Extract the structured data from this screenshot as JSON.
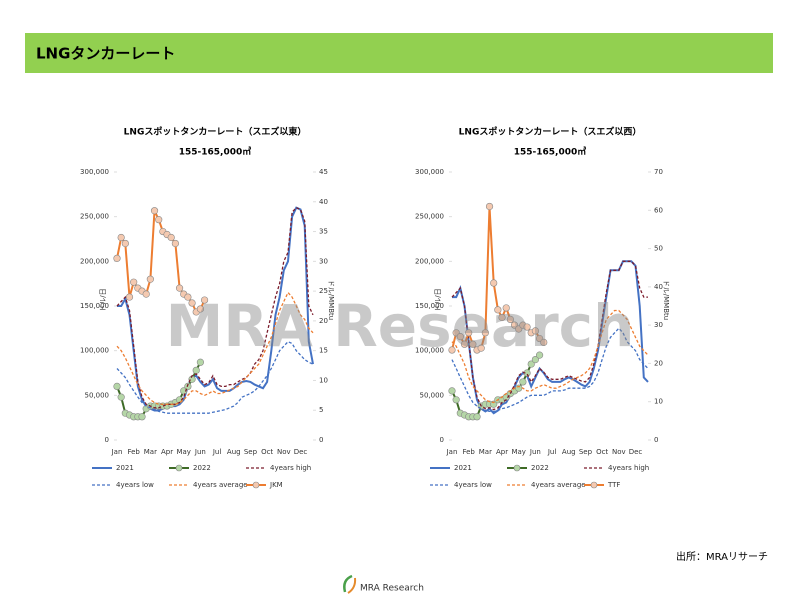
{
  "header": {
    "title": "LNGタンカーレート"
  },
  "source": "出所：MRAリサーチ",
  "watermark": "MRA Research",
  "logo": "MRA Research",
  "chart_data": [
    {
      "type": "line",
      "title": "LNGスポットタンカーレート（スエズ以東）",
      "subtitle": "155-165,000㎥",
      "y_label": "ドル/日",
      "y2_label": "ドル/MMBtu",
      "categories": [
        "Jan",
        null,
        null,
        null,
        "Feb",
        null,
        null,
        null,
        "Mar",
        null,
        null,
        null,
        "Apr",
        null,
        null,
        null,
        "May",
        null,
        null,
        null,
        "Jun",
        null,
        null,
        null,
        "Jul",
        null,
        null,
        null,
        "Aug",
        null,
        null,
        null,
        "Sep",
        null,
        null,
        null,
        "Oct",
        null,
        null,
        null,
        "Nov",
        null,
        null,
        null,
        "Dec",
        null,
        null,
        null
      ],
      "ylim": [
        0,
        300000
      ],
      "yticks": [
        0,
        {
          "value": 50000,
          "label": "50,000"
        },
        {
          "value": 100000,
          "label": "100,000"
        },
        {
          "value": 150000,
          "label": "150,000"
        },
        {
          "value": 200000,
          "label": "200,000"
        },
        {
          "value": 250000,
          "label": "250,000"
        },
        {
          "value": 300000,
          "label": "300,000"
        }
      ],
      "y2lim": [
        0,
        45
      ],
      "y2ticks": [
        0,
        5,
        10,
        15,
        20,
        25,
        30,
        35,
        40,
        45
      ],
      "series": [
        {
          "name": "2021",
          "color": "#4472c4",
          "width": 2,
          "dash": false,
          "marker": false,
          "values": [
            150000,
            150000,
            158000,
            140000,
            100000,
            60000,
            45000,
            38000,
            35000,
            33000,
            33000,
            35000,
            38000,
            38000,
            38000,
            40000,
            45000,
            60000,
            70000,
            72000,
            65000,
            60000,
            62000,
            68000,
            58000,
            55000,
            55000,
            55000,
            58000,
            62000,
            65000,
            66000,
            65000,
            62000,
            60000,
            58000,
            65000,
            100000,
            140000,
            160000,
            190000,
            200000,
            250000,
            260000,
            258000,
            240000,
            110000,
            85000
          ]
        },
        {
          "name": "2022",
          "color": "#3e6b26",
          "width": 2,
          "dash": false,
          "marker": true,
          "marker_fill": "#b5d6a7",
          "values": [
            60000,
            48000,
            30000,
            28000,
            26000,
            26000,
            26000,
            35000,
            38000,
            38000,
            38000,
            38000,
            38000,
            40000,
            42000,
            45000,
            55000,
            60000,
            68000,
            78000,
            87000,
            null,
            null,
            null,
            null,
            null,
            null,
            null,
            null,
            null,
            null,
            null,
            null,
            null,
            null,
            null,
            null,
            null,
            null,
            null,
            null,
            null,
            null,
            null,
            null,
            null,
            null,
            null
          ]
        },
        {
          "name": "4years high",
          "color": "#7b1c2c",
          "width": 1.3,
          "dash": true,
          "marker": false,
          "values": [
            150000,
            155000,
            160000,
            145000,
            105000,
            65000,
            48000,
            40000,
            38000,
            36000,
            36000,
            38000,
            40000,
            40000,
            40000,
            42000,
            48000,
            62000,
            72000,
            74000,
            68000,
            62000,
            64000,
            72000,
            62000,
            60000,
            60000,
            62000,
            62000,
            65000,
            68000,
            70000,
            75000,
            85000,
            90000,
            100000,
            120000,
            140000,
            160000,
            175000,
            200000,
            210000,
            255000,
            260000,
            258000,
            245000,
            150000,
            140000
          ]
        },
        {
          "name": "4years low",
          "color": "#4472c4",
          "width": 1.3,
          "dash": true,
          "marker": false,
          "values": [
            80000,
            75000,
            70000,
            62000,
            55000,
            48000,
            42000,
            38000,
            36000,
            34000,
            32000,
            31000,
            30000,
            30000,
            30000,
            30000,
            30000,
            30000,
            30000,
            30000,
            30000,
            30000,
            30000,
            31000,
            32000,
            33000,
            34000,
            36000,
            38000,
            42000,
            48000,
            50000,
            52000,
            55000,
            60000,
            66000,
            72000,
            80000,
            90000,
            100000,
            105000,
            110000,
            108000,
            100000,
            95000,
            90000,
            87000,
            85000
          ]
        },
        {
          "name": "4years average",
          "color": "#ed7d31",
          "width": 1.3,
          "dash": true,
          "marker": false,
          "values": [
            105000,
            100000,
            92000,
            82000,
            72000,
            62000,
            55000,
            50000,
            45000,
            42000,
            40000,
            40000,
            40000,
            40000,
            40000,
            42000,
            45000,
            50000,
            55000,
            55000,
            52000,
            50000,
            52000,
            55000,
            52000,
            52000,
            54000,
            56000,
            58000,
            60000,
            65000,
            70000,
            75000,
            80000,
            85000,
            95000,
            105000,
            115000,
            130000,
            145000,
            155000,
            165000,
            160000,
            150000,
            140000,
            135000,
            125000,
            120000
          ]
        },
        {
          "name": "JKM",
          "color": "#ed7d31",
          "width": 2,
          "dash": false,
          "marker": true,
          "marker_fill": "#f4c9b0",
          "axis": "y2",
          "values": [
            30.5,
            34,
            33,
            24,
            26.5,
            25.5,
            25,
            24.5,
            27,
            38.5,
            37,
            35,
            34.5,
            34,
            33,
            25.5,
            24.5,
            24,
            23,
            21.5,
            22,
            23.5,
            null,
            null,
            null,
            null,
            null,
            null,
            null,
            null,
            null,
            null,
            null,
            null,
            null,
            null,
            null,
            null,
            null,
            null,
            null,
            null,
            null,
            null,
            null,
            null,
            null,
            null
          ]
        }
      ]
    },
    {
      "type": "line",
      "title": "LNGスポットタンカーレート（スエズ以西）",
      "subtitle": "155-165,000㎥",
      "y_label": "ドル/日",
      "y2_label": "ドル/MMBtu",
      "categories": [
        "Jan",
        null,
        null,
        null,
        "Feb",
        null,
        null,
        null,
        "Mar",
        null,
        null,
        null,
        "Apr",
        null,
        null,
        null,
        "May",
        null,
        null,
        null,
        "Jun",
        null,
        null,
        null,
        "Jul",
        null,
        null,
        null,
        "Aug",
        null,
        null,
        null,
        "Sep",
        null,
        null,
        null,
        "Oct",
        null,
        null,
        null,
        "Nov",
        null,
        null,
        null,
        "Dec",
        null,
        null,
        null
      ],
      "ylim": [
        0,
        300000
      ],
      "yticks": [
        0,
        {
          "value": 50000,
          "label": "50,000"
        },
        {
          "value": 100000,
          "label": "100,000"
        },
        {
          "value": 150000,
          "label": "150,000"
        },
        {
          "value": 200000,
          "label": "200,000"
        },
        {
          "value": 250000,
          "label": "250,000"
        },
        {
          "value": 300000,
          "label": "300,000"
        }
      ],
      "y2lim": [
        0,
        70
      ],
      "y2ticks": [
        0,
        10,
        20,
        30,
        40,
        50,
        60,
        70
      ],
      "series": [
        {
          "name": "2021",
          "color": "#4472c4",
          "width": 2,
          "dash": false,
          "marker": false,
          "values": [
            160000,
            160000,
            170000,
            150000,
            110000,
            70000,
            45000,
            35000,
            32000,
            35000,
            30000,
            33000,
            40000,
            42000,
            50000,
            60000,
            70000,
            75000,
            72000,
            60000,
            70000,
            80000,
            75000,
            68000,
            65000,
            65000,
            65000,
            68000,
            70000,
            68000,
            65000,
            62000,
            60000,
            65000,
            80000,
            100000,
            130000,
            160000,
            190000,
            190000,
            190000,
            200000,
            200000,
            200000,
            195000,
            150000,
            70000,
            65000
          ]
        },
        {
          "name": "2022",
          "color": "#3e6b26",
          "width": 2,
          "dash": false,
          "marker": true,
          "marker_fill": "#b5d6a7",
          "values": [
            55000,
            45000,
            30000,
            28000,
            26000,
            26000,
            26000,
            38000,
            40000,
            40000,
            40000,
            45000,
            45000,
            48000,
            52000,
            55000,
            58000,
            65000,
            75000,
            85000,
            90000,
            95000,
            null,
            null,
            null,
            null,
            null,
            null,
            null,
            null,
            null,
            null,
            null,
            null,
            null,
            null,
            null,
            null,
            null,
            null,
            null,
            null,
            null,
            null,
            null,
            null,
            null,
            null
          ]
        },
        {
          "name": "4years high",
          "color": "#7b1c2c",
          "width": 1.3,
          "dash": true,
          "marker": false,
          "values": [
            160000,
            165000,
            170000,
            150000,
            110000,
            70000,
            48000,
            38000,
            35000,
            36000,
            34000,
            36000,
            42000,
            45000,
            52000,
            62000,
            72000,
            76000,
            74000,
            65000,
            72000,
            80000,
            76000,
            70000,
            68000,
            68000,
            68000,
            70000,
            72000,
            70000,
            68000,
            66000,
            65000,
            70000,
            85000,
            105000,
            135000,
            165000,
            190000,
            190000,
            190000,
            200000,
            200000,
            200000,
            195000,
            170000,
            160000,
            160000
          ]
        },
        {
          "name": "4years low",
          "color": "#4472c4",
          "width": 1.3,
          "dash": true,
          "marker": false,
          "values": [
            90000,
            80000,
            70000,
            60000,
            50000,
            42000,
            38000,
            35000,
            33000,
            32000,
            32000,
            33000,
            35000,
            36000,
            38000,
            40000,
            42000,
            45000,
            48000,
            50000,
            50000,
            50000,
            50000,
            52000,
            55000,
            55000,
            55000,
            56000,
            58000,
            58000,
            58000,
            58000,
            58000,
            60000,
            65000,
            75000,
            90000,
            105000,
            115000,
            120000,
            125000,
            120000,
            110000,
            105000,
            100000,
            90000,
            85000,
            80000
          ]
        },
        {
          "name": "4years average",
          "color": "#ed7d31",
          "width": 1.3,
          "dash": true,
          "marker": false,
          "values": [
            110000,
            105000,
            95000,
            85000,
            70000,
            60000,
            55000,
            50000,
            45000,
            43000,
            42000,
            45000,
            48000,
            52000,
            55000,
            58000,
            60000,
            58000,
            55000,
            55000,
            58000,
            60000,
            62000,
            60000,
            58000,
            58000,
            60000,
            62000,
            65000,
            68000,
            70000,
            72000,
            75000,
            80000,
            90000,
            105000,
            120000,
            135000,
            140000,
            145000,
            145000,
            140000,
            135000,
            125000,
            115000,
            105000,
            100000,
            95000
          ]
        },
        {
          "name": "TTF",
          "color": "#ed7d31",
          "width": 2,
          "dash": false,
          "marker": true,
          "marker_fill": "#f4c9b0",
          "axis": "y2",
          "values": [
            23.5,
            28,
            27,
            25,
            28,
            25,
            23.5,
            24,
            28,
            61,
            41,
            34,
            32,
            34.5,
            31.5,
            30,
            29,
            30,
            29.5,
            28,
            28.5,
            26.5,
            25.5,
            null,
            null,
            null,
            null,
            null,
            null,
            null,
            null,
            null,
            null,
            null,
            null,
            null,
            null,
            null,
            null,
            null,
            null,
            null,
            null,
            null,
            null,
            null,
            null,
            null
          ]
        }
      ]
    }
  ]
}
